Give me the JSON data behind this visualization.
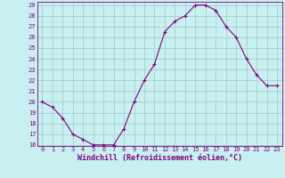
{
  "x": [
    0,
    1,
    2,
    3,
    4,
    5,
    6,
    7,
    8,
    9,
    10,
    11,
    12,
    13,
    14,
    15,
    16,
    17,
    18,
    19,
    20,
    21,
    22,
    23
  ],
  "y": [
    20,
    19.5,
    18.5,
    17,
    16.5,
    16,
    16,
    16,
    17.5,
    20,
    22,
    23.5,
    26.5,
    27.5,
    28,
    29,
    29,
    28.5,
    27,
    26,
    24,
    22.5,
    21.5,
    21.5
  ],
  "line_color": "#800080",
  "marker": "+",
  "bg_color": "#c8f0f0",
  "grid_color": "#a0c8c8",
  "xlabel": "Windchill (Refroidissement éolien,°C)",
  "xlabel_color": "#800080",
  "tick_color": "#800080",
  "ylim": [
    16,
    29
  ],
  "xlim": [
    -0.5,
    23.5
  ],
  "yticks": [
    16,
    17,
    18,
    19,
    20,
    21,
    22,
    23,
    24,
    25,
    26,
    27,
    28,
    29
  ],
  "xticks": [
    0,
    1,
    2,
    3,
    4,
    5,
    6,
    7,
    8,
    9,
    10,
    11,
    12,
    13,
    14,
    15,
    16,
    17,
    18,
    19,
    20,
    21,
    22,
    23
  ]
}
